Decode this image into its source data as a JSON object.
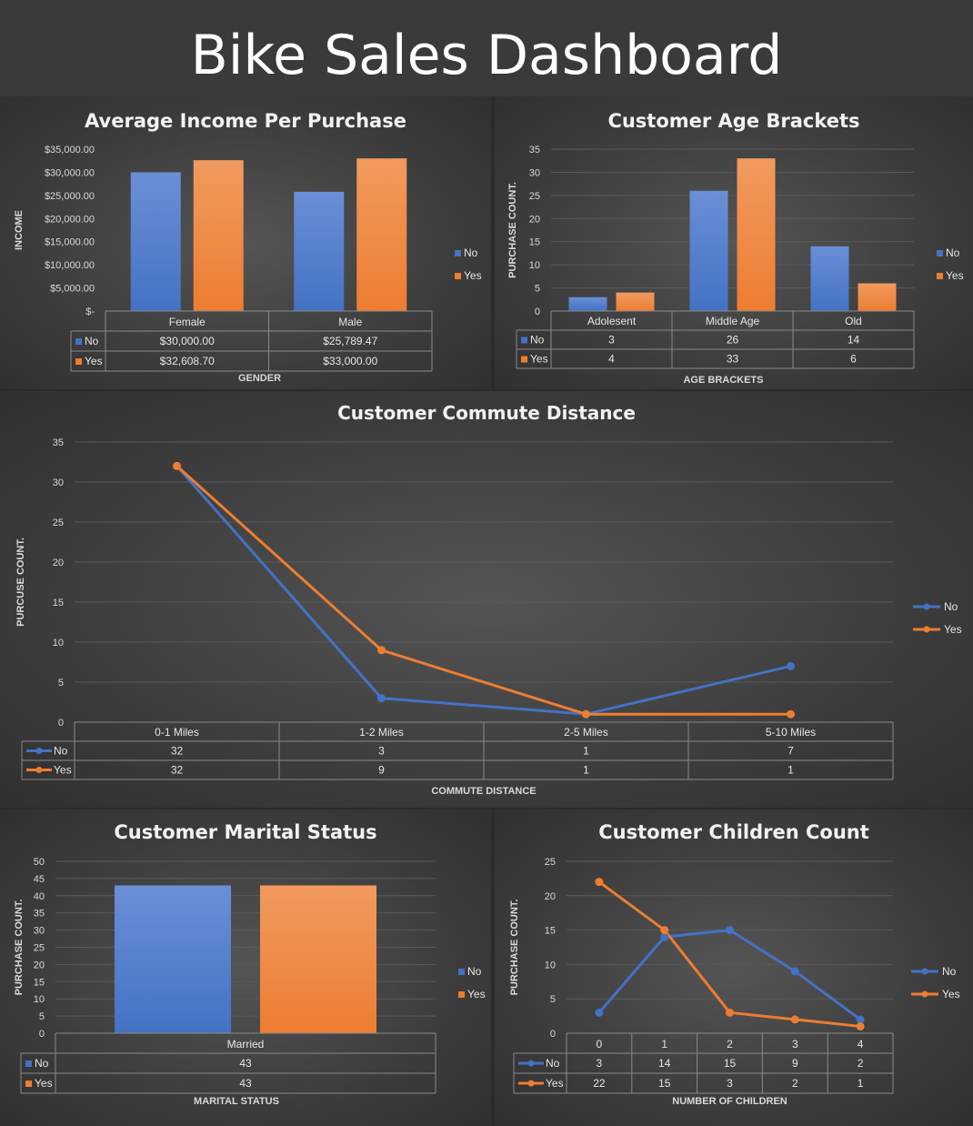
{
  "dashboard_title": "Bike Sales Dashboard",
  "colors": {
    "no": "#4472c4",
    "yes": "#ed7d31"
  },
  "chart_data": [
    {
      "id": "income",
      "type": "bar",
      "title": "Average Income Per Purchase",
      "xlabel": "GENDER",
      "ylabel": "INCOME",
      "categories": [
        "Female",
        "Male"
      ],
      "series": [
        {
          "name": "No",
          "values": [
            30000,
            25789.47
          ],
          "labels": [
            "$30,000.00",
            "$25,789.47"
          ]
        },
        {
          "name": "Yes",
          "values": [
            32608.7,
            33000
          ],
          "labels": [
            "$32,608.70",
            "$33,000.00"
          ]
        }
      ],
      "ylim": [
        0,
        35000
      ],
      "yticks": [
        0,
        5000,
        10000,
        15000,
        20000,
        25000,
        30000,
        35000
      ],
      "ytick_labels": [
        "$-",
        "$5,000.00",
        "$10,000.00",
        "$15,000.00",
        "$20,000.00",
        "$25,000.00",
        "$30,000.00",
        "$35,000.00"
      ],
      "legend": "right",
      "grid": false
    },
    {
      "id": "age",
      "type": "bar",
      "title": "Customer Age Brackets",
      "xlabel": "AGE BRACKETS",
      "ylabel": "PURCHASE COUNT.",
      "categories": [
        "Adolesent",
        "Middle Age",
        "Old"
      ],
      "series": [
        {
          "name": "No",
          "values": [
            3,
            26,
            14
          ],
          "labels": [
            "3",
            "26",
            "14"
          ]
        },
        {
          "name": "Yes",
          "values": [
            4,
            33,
            6
          ],
          "labels": [
            "4",
            "33",
            "6"
          ]
        }
      ],
      "ylim": [
        0,
        35
      ],
      "yticks": [
        0,
        5,
        10,
        15,
        20,
        25,
        30,
        35
      ],
      "ytick_labels": [
        "0",
        "5",
        "10",
        "15",
        "20",
        "25",
        "30",
        "35"
      ],
      "legend": "right",
      "grid": true
    },
    {
      "id": "commute",
      "type": "line",
      "title": "Customer Commute Distance",
      "xlabel": "COMMUTE DISTANCE",
      "ylabel": "PURCUSE COUNT.",
      "categories": [
        "0-1 Miles",
        "1-2 Miles",
        "2-5 Miles",
        "5-10 Miles"
      ],
      "series": [
        {
          "name": "No",
          "values": [
            32,
            3,
            1,
            7
          ],
          "labels": [
            "32",
            "3",
            "1",
            "7"
          ]
        },
        {
          "name": "Yes",
          "values": [
            32,
            9,
            1,
            1
          ],
          "labels": [
            "32",
            "9",
            "1",
            "1"
          ]
        }
      ],
      "ylim": [
        0,
        35
      ],
      "yticks": [
        0,
        5,
        10,
        15,
        20,
        25,
        30,
        35
      ],
      "ytick_labels": [
        "0",
        "5",
        "10",
        "15",
        "20",
        "25",
        "30",
        "35"
      ],
      "legend": "right",
      "grid": true
    },
    {
      "id": "marital",
      "type": "bar",
      "title": "Customer Marital Status",
      "xlabel": "MARITAL STATUS",
      "ylabel": "PURCHASE COUNT.",
      "categories": [
        "Married"
      ],
      "series": [
        {
          "name": "No",
          "values": [
            43
          ],
          "labels": [
            "43"
          ]
        },
        {
          "name": "Yes",
          "values": [
            43
          ],
          "labels": [
            "43"
          ]
        }
      ],
      "ylim": [
        0,
        50
      ],
      "yticks": [
        0,
        5,
        10,
        15,
        20,
        25,
        30,
        35,
        40,
        45,
        50
      ],
      "ytick_labels": [
        "0",
        "5",
        "10",
        "15",
        "20",
        "25",
        "30",
        "35",
        "40",
        "45",
        "50"
      ],
      "legend": "right",
      "grid": true
    },
    {
      "id": "children",
      "type": "line",
      "title": "Customer Children Count",
      "xlabel": "NUMBER OF CHILDREN",
      "ylabel": "PURCHASE COUNT.",
      "categories": [
        "0",
        "1",
        "2",
        "3",
        "4"
      ],
      "series": [
        {
          "name": "No",
          "values": [
            3,
            14,
            15,
            9,
            2
          ],
          "labels": [
            "3",
            "14",
            "15",
            "9",
            "2"
          ]
        },
        {
          "name": "Yes",
          "values": [
            22,
            15,
            3,
            2,
            1
          ],
          "labels": [
            "22",
            "15",
            "3",
            "2",
            "1"
          ]
        }
      ],
      "ylim": [
        0,
        25
      ],
      "yticks": [
        0,
        5,
        10,
        15,
        20,
        25
      ],
      "ytick_labels": [
        "0",
        "5",
        "10",
        "15",
        "20",
        "25"
      ],
      "legend": "right",
      "grid": true
    }
  ]
}
